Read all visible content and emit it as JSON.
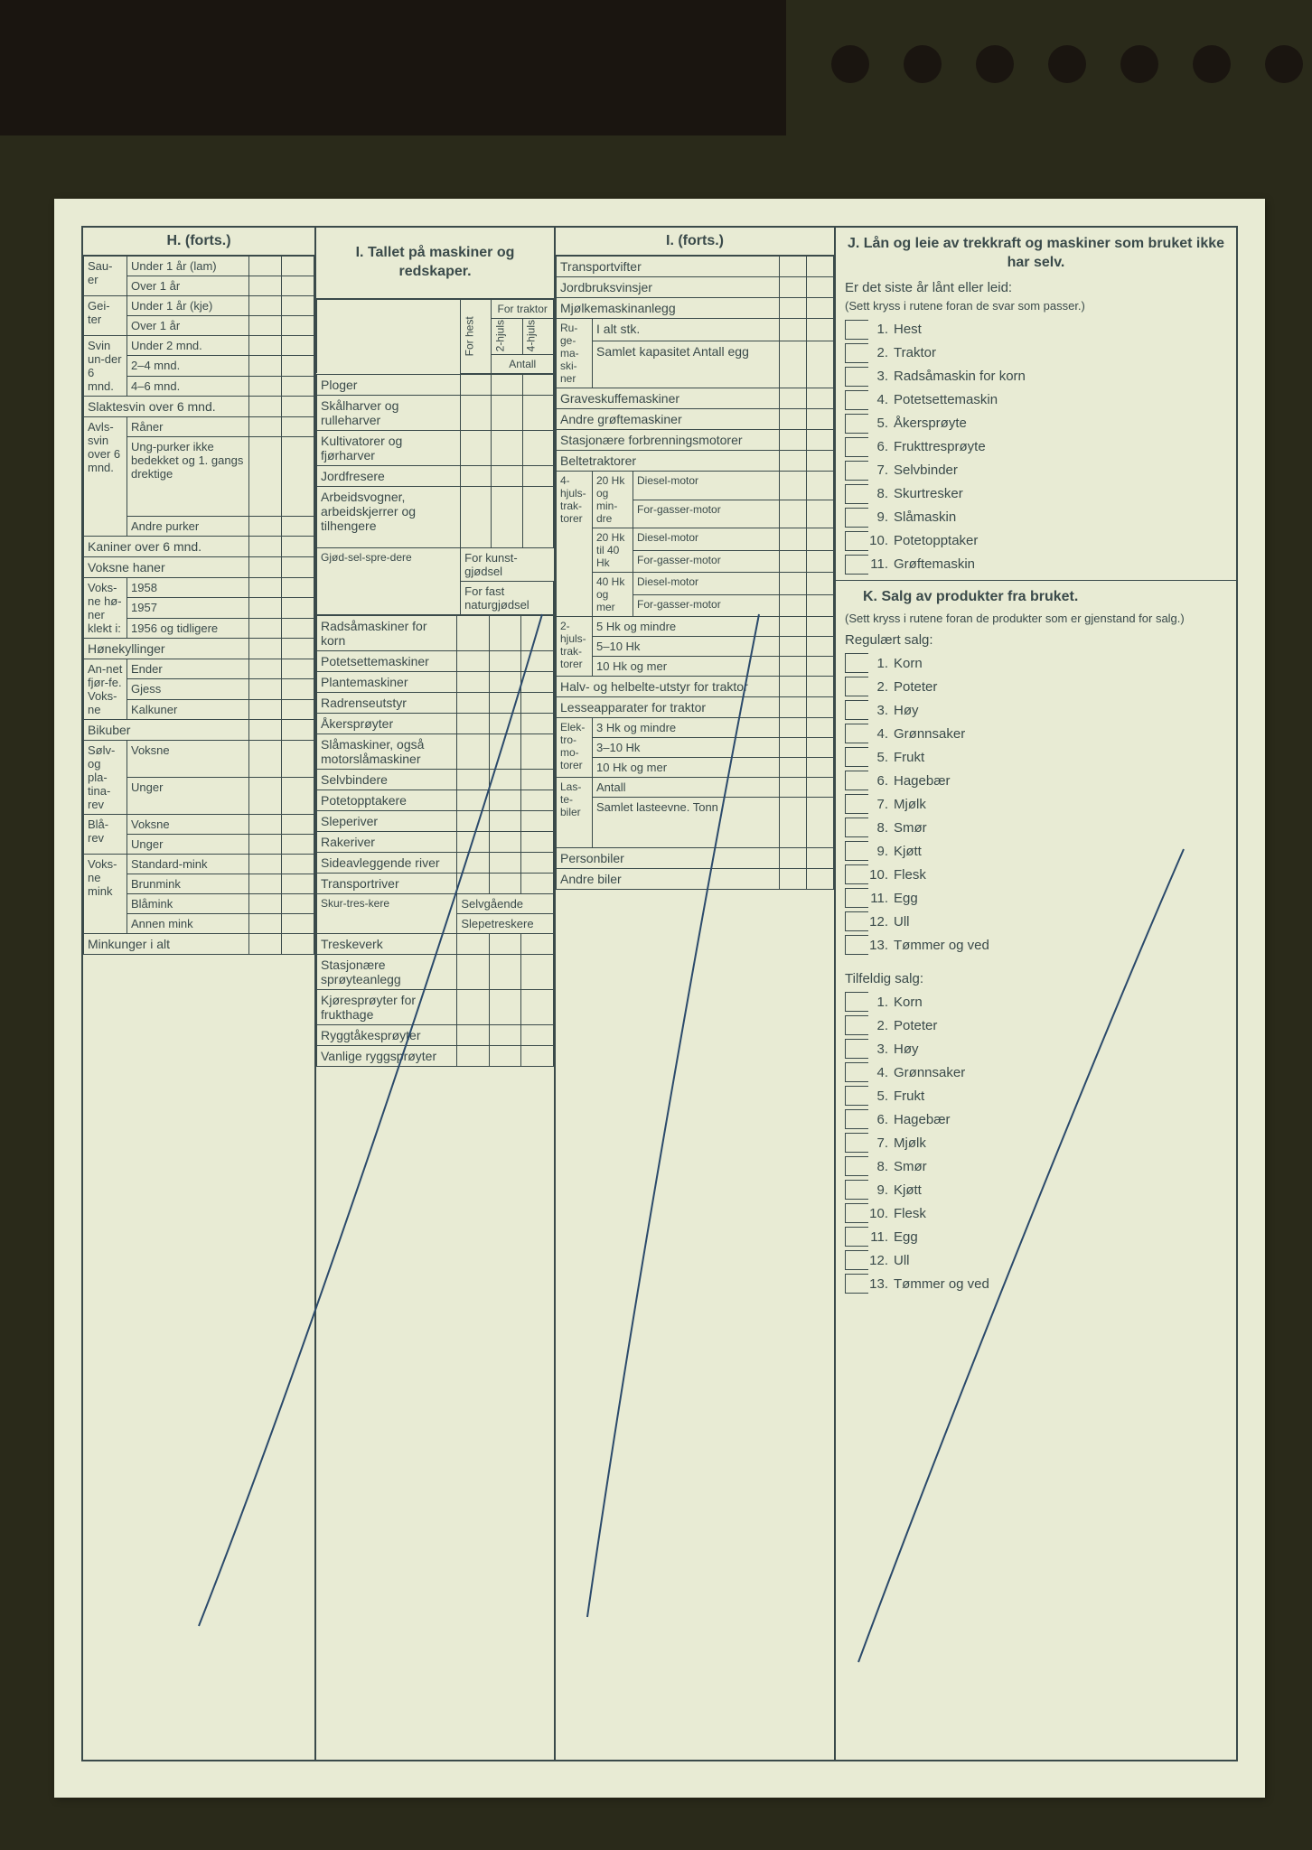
{
  "colors": {
    "paper": "#e8ebd4",
    "ink": "#3a4a4a",
    "pen": "#2b4a6b",
    "bg": "#2a2a1a"
  },
  "sectionH": {
    "title": "H. (forts.)",
    "rows": [
      {
        "group": "Sau-er",
        "items": [
          "Under 1 år (lam)",
          "Over 1 år"
        ]
      },
      {
        "group": "Gei-ter",
        "items": [
          "Under 1 år (kje)",
          "Over 1 år"
        ]
      },
      {
        "group": "Svin un-der 6 mnd.",
        "items": [
          "Under 2 mnd.",
          "2–4 mnd.",
          "4–6 mnd."
        ]
      },
      {
        "group": "",
        "items": [
          "Slaktesvin over 6 mnd."
        ]
      },
      {
        "group": "Avls-svin over 6 mnd.",
        "items": [
          "Råner",
          "Ung-purker ikke bedekket og 1. gangs drektige",
          "Andre purker"
        ]
      },
      {
        "group": "",
        "items": [
          "Kaniner over 6 mnd."
        ]
      },
      {
        "group": "",
        "items": [
          "Voksne haner"
        ]
      },
      {
        "group": "Voks-ne hø-ner klekt i:",
        "items": [
          "1958",
          "1957",
          "1956 og tidligere"
        ]
      },
      {
        "group": "",
        "items": [
          "Hønekyllinger"
        ]
      },
      {
        "group": "An-net fjør-fe. Voks-ne",
        "items": [
          "Ender",
          "Gjess",
          "Kalkuner"
        ]
      },
      {
        "group": "",
        "items": [
          "Bikuber"
        ]
      },
      {
        "group": "Sølv- og pla-tina-rev",
        "items": [
          "Voksne",
          "Unger"
        ]
      },
      {
        "group": "Blå-rev",
        "items": [
          "Voksne",
          "Unger"
        ]
      },
      {
        "group": "Voks-ne mink",
        "items": [
          "Standard-mink",
          "Brunmink",
          "Blåmink",
          "Annen mink"
        ]
      },
      {
        "group": "",
        "items": [
          "Minkunger i alt"
        ]
      }
    ]
  },
  "sectionI1": {
    "title": "I. Tallet på maskiner og redskaper.",
    "subheaders": [
      "For hest",
      "2-hjuls",
      "4-hjuls"
    ],
    "subheader_group": "For traktor",
    "count_label": "Antall",
    "rows": [
      "Ploger",
      "Skålharver og rulleharver",
      "Kultivatorer og fjørharver",
      "Jordfresere",
      "Arbeidsvogner, arbeidskjerrer og tilhengere"
    ],
    "gjodsel": {
      "group": "Gjød-sel-spre-dere",
      "items": [
        "For kunst-gjødsel",
        "For fast naturgjødsel"
      ]
    },
    "rows2": [
      "Radsåmaskiner for korn",
      "Potetsettemaskiner",
      "Plantemaskiner",
      "Radrenseutstyr",
      "Åkersprøyter",
      "Slåmaskiner, også motorslåmaskiner",
      "Selvbindere",
      "Potetopptakere",
      "Sleperiver",
      "Rakeriver",
      "Sideavleggende river",
      "Transportriver"
    ],
    "skurt": {
      "group": "Skur-tres-kere",
      "items": [
        "Selvgående",
        "Slepetreskere"
      ]
    },
    "rows3": [
      "Treskeverk",
      "Stasjonære sprøyteanlegg",
      "Kjøresprøyter for frukthage",
      "Ryggtåkesprøyter",
      "Vanlige ryggsprøyter"
    ]
  },
  "sectionI2": {
    "title": "I. (forts.)",
    "rows_top": [
      "Transportvifter",
      "Jordbruksvinsjer",
      "Mjølkemaskinanlegg"
    ],
    "ruge": {
      "group": "Ru-ge-ma-ski-ner",
      "items": [
        "I alt stk.",
        "Samlet kapasitet Antall egg"
      ]
    },
    "rows_mid": [
      "Graveskuffemaskiner",
      "Andre grøftemaskiner",
      "Stasjonære forbrenningsmotorer",
      "Beltetraktorer"
    ],
    "traktor4": {
      "group": "4-hjuls-trak-torer",
      "sub": [
        {
          "hk": "20 Hk og min-dre",
          "items": [
            "Diesel-motor",
            "For-gasser-motor"
          ]
        },
        {
          "hk": "20 Hk til 40 Hk",
          "items": [
            "Diesel-motor",
            "For-gasser-motor"
          ]
        },
        {
          "hk": "40 Hk og mer",
          "items": [
            "Diesel-motor",
            "For-gasser-motor"
          ]
        }
      ]
    },
    "traktor2": {
      "group": "2-hjuls-trak-torer",
      "items": [
        "5 Hk og mindre",
        "5–10 Hk",
        "10 Hk og mer"
      ]
    },
    "rows_belt": [
      "Halv- og helbelte-utstyr for traktor",
      "Lesseapparater for traktor"
    ],
    "elektro": {
      "group": "Elek-tro-mo-torer",
      "items": [
        "3 Hk og mindre",
        "3–10 Hk",
        "10 Hk og mer"
      ]
    },
    "laste": {
      "group": "Las-te-biler",
      "items": [
        "Antall",
        "Samlet lasteevne. Tonn"
      ]
    },
    "rows_bot": [
      "Personbiler",
      "Andre biler"
    ]
  },
  "sectionJ": {
    "title": "J. Lån og leie av trekkraft og maskiner som bruket ikke har selv.",
    "sub": "Er det siste år lånt eller leid:",
    "note": "(Sett kryss i rutene foran de svar som passer.)",
    "items": [
      "Hest",
      "Traktor",
      "Radsåmaskin for korn",
      "Potetsettemaskin",
      "Åkersprøyte",
      "Frukttresprøyte",
      "Selvbinder",
      "Skurtresker",
      "Slåmaskin",
      "Potetopptaker",
      "Grøftemaskin"
    ]
  },
  "sectionK": {
    "title": "K. Salg av produkter fra bruket.",
    "note": "(Sett kryss i rutene foran de produkter som er gjenstand for salg.)",
    "reg_label": "Regulært salg:",
    "reg_items": [
      "Korn",
      "Poteter",
      "Høy",
      "Grønnsaker",
      "Frukt",
      "Hagebær",
      "Mjølk",
      "Smør",
      "Kjøtt",
      "Flesk",
      "Egg",
      "Ull",
      "Tømmer og ved"
    ],
    "tilf_label": "Tilfeldig salg:",
    "tilf_items": [
      "Korn",
      "Poteter",
      "Høy",
      "Grønnsaker",
      "Frukt",
      "Hagebær",
      "Mjølk",
      "Smør",
      "Kjøtt",
      "Flesk",
      "Egg",
      "Ull",
      "Tømmer og ved"
    ]
  }
}
